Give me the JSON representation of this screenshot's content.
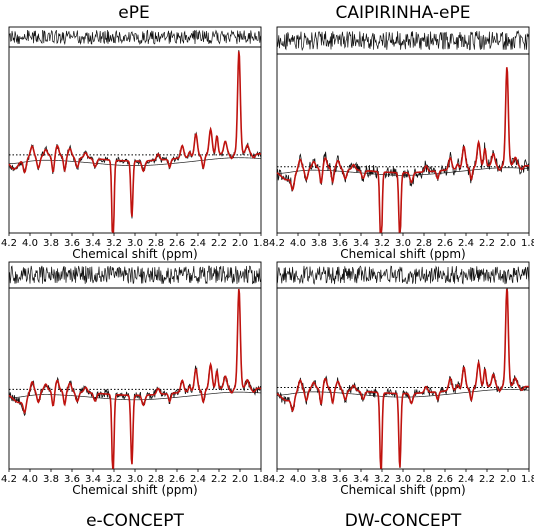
{
  "chart_data": [
    {
      "type": "line",
      "title": "ePE",
      "xlabel": "Chemical shift (ppm)",
      "x_ticks": [
        "4.2",
        "4.0",
        "3.8",
        "3.6",
        "3.4",
        "3.2",
        "3.0",
        "2.8",
        "2.6",
        "2.4",
        "2.2",
        "2.0",
        "1.8"
      ],
      "xlim": [
        4.2,
        1.8
      ],
      "x_reversed": true,
      "series": [
        {
          "x": [
            4.2,
            1.8
          ],
          "values": [
            0,
            0
          ]
        },
        {
          "x": [
            4.2,
            1.8
          ],
          "values": [
            0,
            0
          ]
        },
        {
          "x": [
            4.2,
            1.8
          ],
          "values": [
            0,
            0
          ]
        }
      ],
      "peaks": [
        {
          "ppm": 3.21,
          "value": -0.9
        },
        {
          "ppm": 3.03,
          "value": -0.55
        },
        {
          "ppm": 2.01,
          "value": 1.0
        }
      ]
    },
    {
      "type": "line",
      "title": "CAIPIRINHA-ePE",
      "xlabel": "Chemical shift (ppm)",
      "x_ticks": [
        "4.2",
        "4.0",
        "3.8",
        "3.6",
        "3.4",
        "3.2",
        "3.0",
        "2.8",
        "2.6",
        "2.4",
        "2.2",
        "2.0",
        "1.8"
      ],
      "xlim": [
        4.2,
        1.8
      ],
      "x_reversed": true,
      "series": [
        {
          "x": [
            4.2,
            1.8
          ],
          "values": [
            0,
            0
          ]
        },
        {
          "x": [
            4.2,
            1.8
          ],
          "values": [
            0,
            0
          ]
        },
        {
          "x": [
            4.2,
            1.8
          ],
          "values": [
            0,
            0
          ]
        }
      ],
      "peaks": [
        {
          "ppm": 3.21,
          "value": -0.9
        },
        {
          "ppm": 3.03,
          "value": -0.7
        },
        {
          "ppm": 2.01,
          "value": 1.0
        }
      ]
    },
    {
      "type": "line",
      "title": "e-CONCEPT",
      "xlabel": "Chemical shift (ppm)",
      "x_ticks": [
        "4.2",
        "4.0",
        "3.8",
        "3.6",
        "3.4",
        "3.2",
        "3.0",
        "2.8",
        "2.6",
        "2.4",
        "2.2",
        "2.0",
        "1.8"
      ],
      "xlim": [
        4.2,
        1.8
      ],
      "x_reversed": true,
      "series": [
        {
          "x": [
            4.2,
            1.8
          ],
          "values": [
            0,
            0
          ]
        },
        {
          "x": [
            4.2,
            1.8
          ],
          "values": [
            0,
            0
          ]
        },
        {
          "x": [
            4.2,
            1.8
          ],
          "values": [
            0,
            0
          ]
        }
      ],
      "peaks": [
        {
          "ppm": 3.21,
          "value": -0.85
        },
        {
          "ppm": 3.03,
          "value": -0.7
        },
        {
          "ppm": 2.01,
          "value": 1.0
        }
      ]
    },
    {
      "type": "line",
      "title": "DW-CONCEPT",
      "xlabel": "Chemical shift (ppm)",
      "x_ticks": [
        "4.2",
        "4.0",
        "3.8",
        "3.6",
        "3.4",
        "3.2",
        "3.0",
        "2.8",
        "2.6",
        "2.4",
        "2.2",
        "2.0",
        "1.8"
      ],
      "xlim": [
        4.2,
        1.8
      ],
      "x_reversed": true,
      "series": [
        {
          "x": [
            4.2,
            1.8
          ],
          "values": [
            0,
            0
          ]
        },
        {
          "x": [
            4.2,
            1.8
          ],
          "values": [
            0,
            0
          ]
        },
        {
          "x": [
            4.2,
            1.8
          ],
          "values": [
            0,
            0
          ]
        }
      ],
      "peaks": [
        {
          "ppm": 3.21,
          "value": -0.85
        },
        {
          "ppm": 3.03,
          "value": -0.75
        },
        {
          "ppm": 2.01,
          "value": 1.0
        }
      ]
    }
  ],
  "colors": {
    "data": "#111111",
    "fit": "#c0130f",
    "baseline": "#222222"
  }
}
